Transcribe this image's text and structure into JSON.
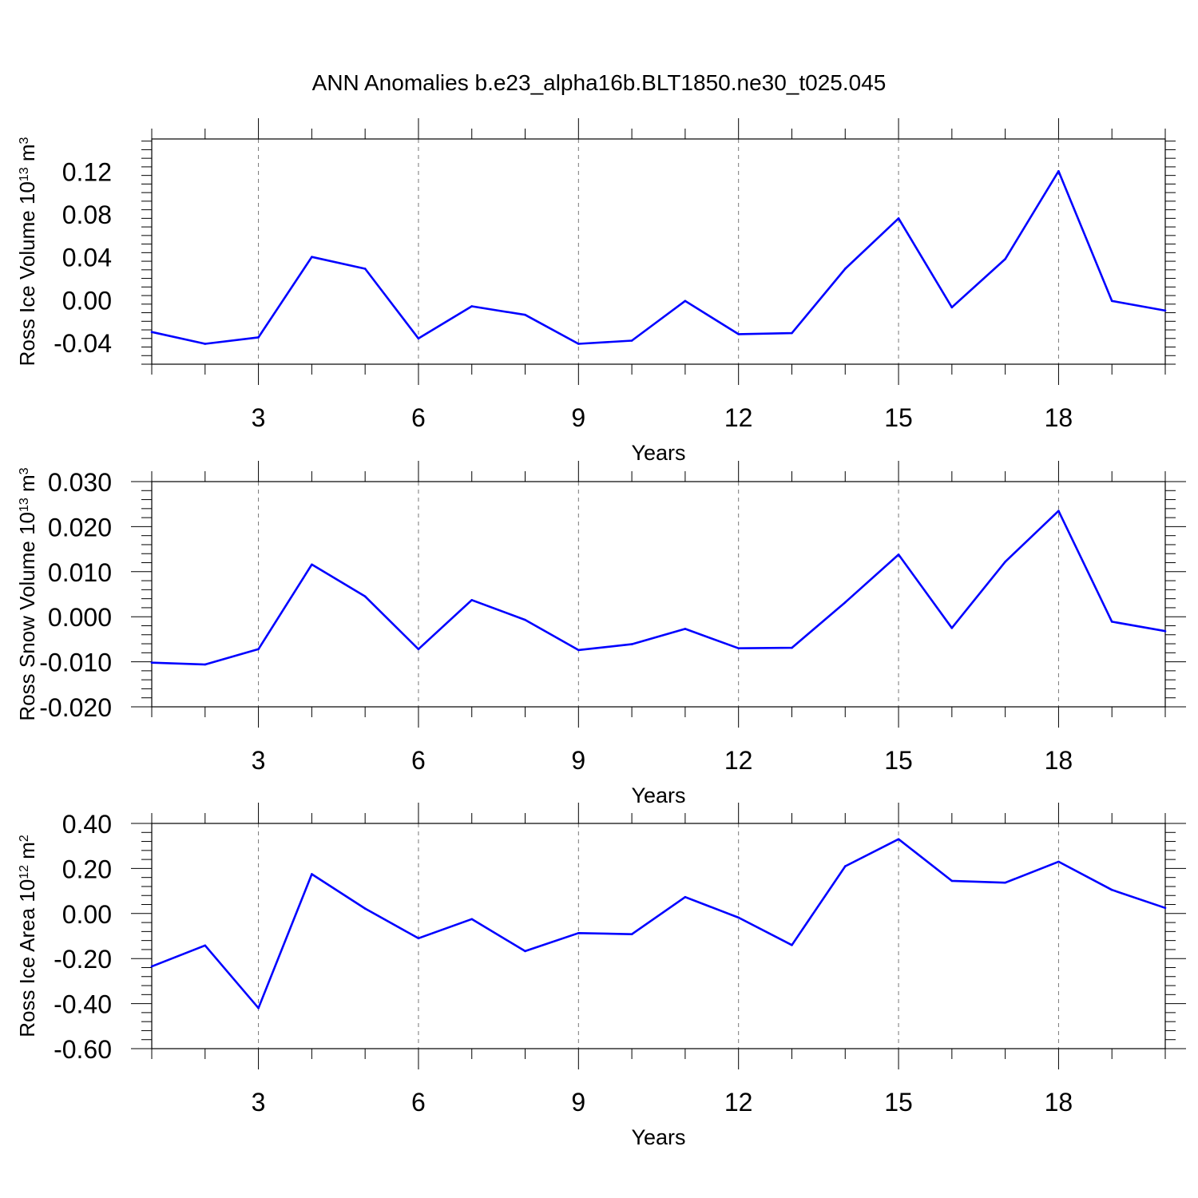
{
  "title": "ANN Anomalies b.e23_alpha16b.BLT1850.ne30_t025.045",
  "line_color": "#0000ff",
  "grid_color": "#777777",
  "chart_data": [
    {
      "type": "line",
      "title": "ANN Anomalies b.e23_alpha16b.BLT1850.ne30_t025.045",
      "xlabel": "Years",
      "ylabel": "Ross Ice Volume 10",
      "ylabel_exp": "13",
      "ylabel_unit": " m",
      "ylabel_unit_exp": "3",
      "xlim": [
        1,
        20
      ],
      "ylim": [
        -0.06,
        0.15
      ],
      "x_ticks": [
        3,
        6,
        9,
        12,
        15,
        18
      ],
      "x_tick_labels": [
        "3",
        "6",
        "9",
        "12",
        "15",
        "18"
      ],
      "y_ticks": [
        -0.04,
        0.0,
        0.04,
        0.08,
        0.12
      ],
      "y_tick_labels": [
        "-0.04",
        "0.00",
        "0.04",
        "0.08",
        "0.12"
      ],
      "grid": "vertical dashed at major x ticks",
      "x": [
        1,
        2,
        3,
        4,
        5,
        6,
        7,
        8,
        9,
        10,
        11,
        12,
        13,
        14,
        15,
        16,
        17,
        18,
        19,
        20
      ],
      "values": [
        -0.03,
        -0.041,
        -0.035,
        0.04,
        0.029,
        -0.036,
        -0.006,
        -0.014,
        -0.041,
        -0.038,
        -0.001,
        -0.032,
        -0.031,
        0.029,
        0.076,
        -0.007,
        0.038,
        0.12,
        -0.001,
        -0.01
      ]
    },
    {
      "type": "line",
      "xlabel": "Years",
      "ylabel": "Ross Snow Volume 10",
      "ylabel_exp": "13",
      "ylabel_unit": " m",
      "ylabel_unit_exp": "3",
      "xlim": [
        1,
        20
      ],
      "ylim": [
        -0.02,
        0.03
      ],
      "x_ticks": [
        3,
        6,
        9,
        12,
        15,
        18
      ],
      "x_tick_labels": [
        "3",
        "6",
        "9",
        "12",
        "15",
        "18"
      ],
      "y_ticks": [
        -0.02,
        -0.01,
        0.0,
        0.01,
        0.02,
        0.03
      ],
      "y_tick_labels": [
        "-0.020",
        "-0.010",
        "0.000",
        "0.010",
        "0.020",
        "0.030"
      ],
      "grid": "vertical dashed at major x ticks",
      "x": [
        1,
        2,
        3,
        4,
        5,
        6,
        7,
        8,
        9,
        10,
        11,
        12,
        13,
        14,
        15,
        16,
        17,
        18,
        19,
        20
      ],
      "values": [
        -0.0102,
        -0.0106,
        -0.0072,
        0.0116,
        0.0045,
        -0.0072,
        0.0037,
        -0.0007,
        -0.0074,
        -0.0061,
        -0.0027,
        -0.007,
        -0.0069,
        0.0032,
        0.0138,
        -0.0025,
        0.0122,
        0.0235,
        -0.0011,
        -0.0032
      ]
    },
    {
      "type": "line",
      "xlabel": "Years",
      "ylabel": "Ross Ice Area 10",
      "ylabel_exp": "12",
      "ylabel_unit": " m",
      "ylabel_unit_exp": "2",
      "xlim": [
        1,
        20
      ],
      "ylim": [
        -0.6,
        0.4
      ],
      "x_ticks": [
        3,
        6,
        9,
        12,
        15,
        18
      ],
      "x_tick_labels": [
        "3",
        "6",
        "9",
        "12",
        "15",
        "18"
      ],
      "y_ticks": [
        -0.6,
        -0.4,
        -0.2,
        0.0,
        0.2,
        0.4
      ],
      "y_tick_labels": [
        "-0.60",
        "-0.40",
        "-0.20",
        "0.00",
        "0.20",
        "0.40"
      ],
      "grid": "vertical dashed at major x ticks",
      "x": [
        1,
        2,
        3,
        4,
        5,
        6,
        7,
        8,
        9,
        10,
        11,
        12,
        13,
        14,
        15,
        16,
        17,
        18,
        19,
        20
      ],
      "values": [
        -0.235,
        -0.142,
        -0.42,
        0.175,
        0.022,
        -0.11,
        -0.025,
        -0.167,
        -0.087,
        -0.092,
        0.073,
        -0.018,
        -0.14,
        0.21,
        0.33,
        0.145,
        0.137,
        0.23,
        0.105,
        0.025
      ]
    }
  ]
}
